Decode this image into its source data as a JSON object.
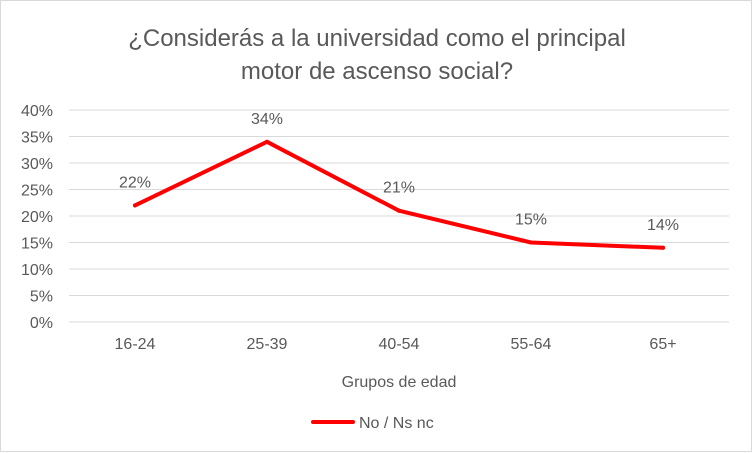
{
  "chart_data": {
    "type": "line",
    "title_lines": [
      "¿Considerás a la universidad como el principal",
      "motor de ascenso social?"
    ],
    "xlabel": "Grupos de edad",
    "ylabel": "",
    "categories": [
      "16-24",
      "25-39",
      "40-54",
      "55-64",
      "65+"
    ],
    "series": [
      {
        "name": "No / Ns nc",
        "values": [
          22,
          34,
          21,
          15,
          14
        ],
        "labels": [
          "22%",
          "34%",
          "21%",
          "15%",
          "14%"
        ],
        "color": "#ff0000"
      }
    ],
    "ylim": [
      0,
      40
    ],
    "yticks": [
      "0%",
      "5%",
      "10%",
      "15%",
      "20%",
      "25%",
      "30%",
      "35%",
      "40%"
    ],
    "grid": true,
    "legend": "bottom"
  }
}
